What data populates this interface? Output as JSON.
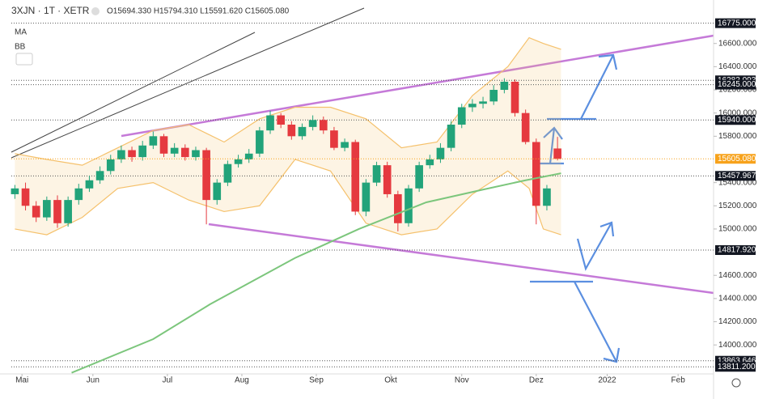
{
  "chart_data": {
    "type": "candlestick",
    "title": "3XJN · 1T · XETR",
    "subtitle": "O15694.330 H15794.310 L15591.620 C15605.080",
    "indicators": [
      "MA",
      "BB"
    ],
    "xlim": [
      0,
      198
    ],
    "ylim": [
      13750,
      16975
    ],
    "xticks": [
      {
        "value": 3,
        "label": "Mai"
      },
      {
        "value": 23,
        "label": "Jun"
      },
      {
        "value": 44,
        "label": "Jul"
      },
      {
        "value": 65,
        "label": "Aug"
      },
      {
        "value": 86,
        "label": "Sep"
      },
      {
        "value": 107,
        "label": "Okt"
      },
      {
        "value": 127,
        "label": "Nov"
      },
      {
        "value": 148,
        "label": "Dez"
      },
      {
        "value": 168,
        "label": "2022"
      },
      {
        "value": 188,
        "label": "Feb"
      }
    ],
    "yticks": [
      {
        "value": 14000,
        "label": "14000.000"
      },
      {
        "value": 14200,
        "label": "14200.000"
      },
      {
        "value": 14400,
        "label": "14400.000"
      },
      {
        "value": 14600,
        "label": "14600.000"
      },
      {
        "value": 15000,
        "label": "15000.000"
      },
      {
        "value": 15200,
        "label": "15200.000"
      },
      {
        "value": 15400,
        "label": "15400.000"
      },
      {
        "value": 15800,
        "label": "15800.000"
      },
      {
        "value": 16000,
        "label": "16000.000"
      },
      {
        "value": 16200,
        "label": "16200.000"
      },
      {
        "value": 16400,
        "label": "16400.000"
      },
      {
        "value": 16600,
        "label": "16600.000"
      }
    ],
    "price_levels": [
      {
        "value": 16775,
        "label": "16775.000"
      },
      16282.093,
      {
        "value": 16245,
        "label": "16245.000"
      },
      {
        "value": 15940,
        "label": "15940.000"
      },
      15457.967,
      {
        "value": 14817.92,
        "label": "14817.920"
      },
      13863.646,
      {
        "value": 13811.2,
        "label": "13811.200"
      }
    ],
    "current_price": {
      "value": 15605.08,
      "label": "15605.080",
      "color": "#f7a21b"
    },
    "up_color": "#22a37a",
    "down_color": "#e5393f",
    "x": [
      1,
      4,
      7,
      10,
      13,
      16,
      19,
      22,
      25,
      28,
      31,
      34,
      37,
      40,
      43,
      46,
      49,
      52,
      55,
      58,
      61,
      64,
      67,
      70,
      73,
      76,
      79,
      82,
      85,
      88,
      91,
      94,
      97,
      100,
      103,
      106,
      109,
      112,
      115,
      118,
      121,
      124,
      127,
      130,
      133,
      136,
      139,
      142,
      145,
      148,
      151,
      154
    ],
    "open": [
      15300,
      15350,
      15200,
      15100,
      15250,
      15050,
      15250,
      15350,
      15420,
      15500,
      15600,
      15680,
      15620,
      15720,
      15800,
      15650,
      15700,
      15620,
      15680,
      15250,
      15400,
      15560,
      15600,
      15650,
      15850,
      15980,
      15900,
      15800,
      15880,
      15940,
      15850,
      15700,
      15750,
      15150,
      15400,
      15550,
      15300,
      15050,
      15350,
      15550,
      15600,
      15700,
      15900,
      16050,
      16080,
      16100,
      16200,
      16270,
      16000,
      15750,
      15200,
      15694.33
    ],
    "high": [
      15380,
      15400,
      15240,
      15280,
      15290,
      15280,
      15390,
      15460,
      15540,
      15640,
      15720,
      15710,
      15760,
      15840,
      15820,
      15740,
      15730,
      15710,
      15700,
      15430,
      15590,
      15640,
      15690,
      15880,
      16020,
      16000,
      15930,
      15910,
      15980,
      15970,
      15880,
      15780,
      15770,
      15430,
      15580,
      15580,
      15330,
      15380,
      15580,
      15640,
      15740,
      15930,
      16080,
      16120,
      16140,
      16240,
      16300,
      16290,
      16030,
      15780,
      15380,
      15794.31
    ],
    "low": [
      15260,
      15160,
      15060,
      15070,
      15010,
      15020,
      15210,
      15320,
      15390,
      15470,
      15570,
      15580,
      15590,
      15690,
      15620,
      15620,
      15590,
      15590,
      15040,
      15210,
      15370,
      15530,
      15570,
      15620,
      15820,
      15870,
      15770,
      15770,
      15850,
      15820,
      15680,
      15670,
      15120,
      15110,
      15370,
      15270,
      14980,
      15020,
      15320,
      15520,
      15570,
      15670,
      15870,
      16010,
      16040,
      16070,
      16170,
      15970,
      15730,
      15040,
      15160,
      15591.62
    ],
    "close": [
      15350,
      15200,
      15100,
      15250,
      15050,
      15250,
      15350,
      15420,
      15500,
      15600,
      15680,
      15620,
      15720,
      15800,
      15650,
      15700,
      15620,
      15680,
      15250,
      15400,
      15560,
      15600,
      15650,
      15850,
      15980,
      15900,
      15800,
      15880,
      15940,
      15850,
      15700,
      15750,
      15150,
      15400,
      15550,
      15300,
      15050,
      15350,
      15550,
      15600,
      15700,
      15900,
      16050,
      16080,
      16100,
      16200,
      16270,
      16000,
      15750,
      15200,
      15350,
      15605.08
    ],
    "ma": {
      "color": "#7cc67c",
      "x": [
        17,
        40,
        56,
        80,
        98,
        117,
        133,
        145,
        155
      ],
      "values": [
        13760,
        14050,
        14350,
        14750,
        15000,
        15230,
        15340,
        15420,
        15480
      ]
    },
    "bb": {
      "color": "#f5c16c",
      "x": [
        1,
        10,
        20,
        30,
        40,
        50,
        60,
        70,
        80,
        90,
        100,
        110,
        120,
        130,
        140,
        146,
        150,
        155
      ],
      "upper": [
        15650,
        15600,
        15550,
        15700,
        15850,
        15900,
        15750,
        15950,
        16050,
        16050,
        15950,
        15700,
        15750,
        16150,
        16400,
        16650,
        16600,
        16550
      ],
      "lower": [
        15000,
        14950,
        15100,
        15350,
        15400,
        15250,
        15150,
        15200,
        15600,
        15500,
        15050,
        14950,
        15000,
        15300,
        15500,
        15350,
        15000,
        14950
      ]
    }
  }
}
